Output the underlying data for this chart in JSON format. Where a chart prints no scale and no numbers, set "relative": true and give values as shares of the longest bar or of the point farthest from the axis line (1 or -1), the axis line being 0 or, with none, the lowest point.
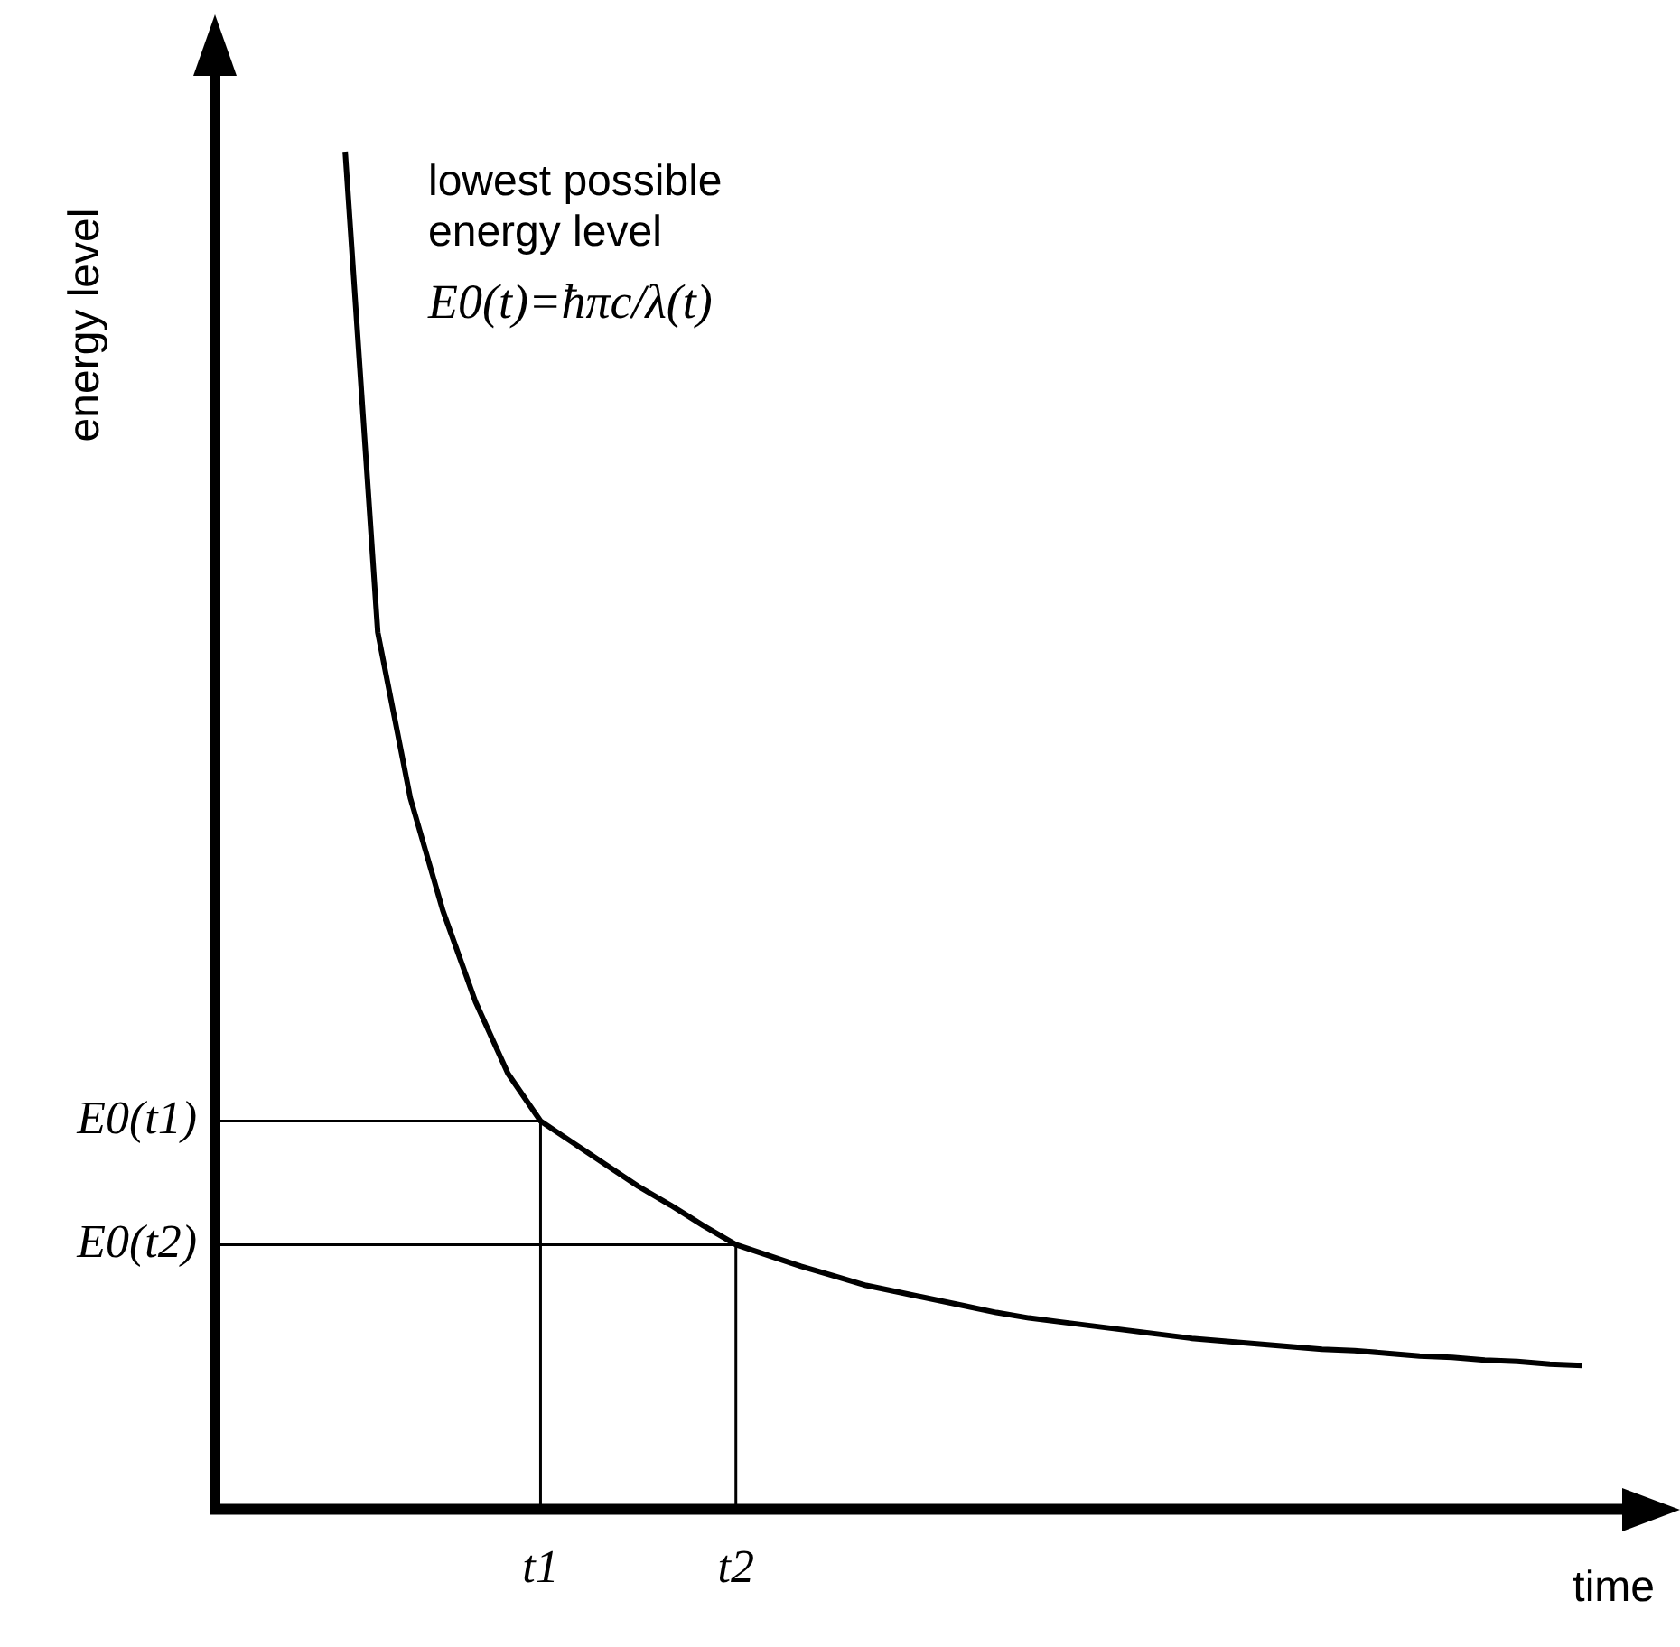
{
  "chart_data": {
    "type": "line",
    "relative": true,
    "xlabel": "time",
    "ylabel": "energy level",
    "annotations": [
      "lowest possible energy level",
      "E0(t)=ħπc/λ(t)"
    ],
    "categories": [
      null,
      null,
      null,
      null,
      null,
      null,
      null,
      null,
      null,
      null,
      "t1",
      null,
      null,
      null,
      null,
      null,
      "t2",
      null,
      null,
      null,
      null,
      null,
      null,
      null,
      null,
      null,
      null,
      null,
      null,
      null,
      null,
      null,
      null,
      null,
      null,
      null,
      null,
      null,
      null,
      null,
      null,
      null,
      null,
      null,
      null
    ],
    "ref_lines": [
      {
        "axis": "x",
        "value": "t1"
      },
      {
        "axis": "x",
        "value": "t2"
      },
      {
        "axis": "y",
        "value": 0.286,
        "label": "E0(t1)"
      },
      {
        "axis": "y",
        "value": 0.195,
        "label": "E0(t2)"
      }
    ],
    "series": [
      {
        "color": "#000000",
        "values": [
          null,
          null,
          null,
          null,
          1,
          0.646,
          0.524,
          0.441,
          0.374,
          0.321,
          0.286,
          0.27,
          0.254,
          0.238,
          0.224,
          0.209,
          0.195,
          0.187,
          0.179,
          0.172,
          0.165,
          0.16,
          0.155,
          0.15,
          0.145,
          0.141,
          0.138,
          0.135,
          0.132,
          0.129,
          0.126,
          0.124,
          0.122,
          0.12,
          0.118,
          0.117,
          0.115,
          0.113,
          0.112,
          0.11,
          0.109,
          0.107,
          0.106,
          null,
          null
        ]
      }
    ]
  }
}
